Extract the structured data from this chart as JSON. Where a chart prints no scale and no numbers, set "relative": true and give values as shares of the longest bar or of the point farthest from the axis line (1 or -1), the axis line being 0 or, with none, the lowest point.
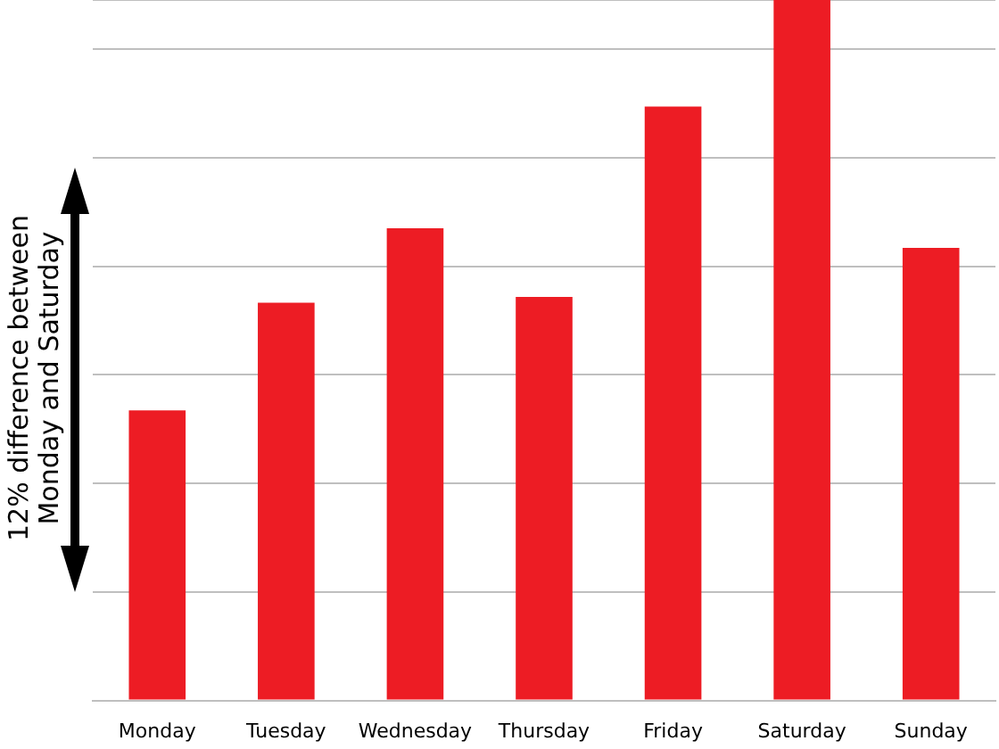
{
  "chart_data": {
    "type": "bar",
    "relative": true,
    "categories": [
      "Monday",
      "Tuesday",
      "Wednesday",
      "Thursday",
      "Friday",
      "Saturday",
      "Sunday"
    ],
    "values": [
      0.414,
      0.568,
      0.674,
      0.576,
      0.848,
      1,
      0.646
    ],
    "color": "#ed1c24",
    "grid": "y",
    "legend": false,
    "annotations": [
      "12% difference between Monday and Saturday"
    ]
  }
}
